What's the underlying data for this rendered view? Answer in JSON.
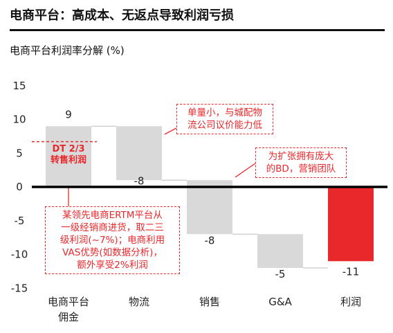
{
  "title": "电商平台：高成本、无返点导致利润亏损",
  "chart_data": {
    "type": "waterfall",
    "ylabel": "电商平台利润率分解 (%)",
    "ylim": [
      -15,
      15
    ],
    "yticks": [
      "15",
      "10",
      "5",
      "0",
      "-5",
      "-10",
      "-15"
    ],
    "categories": [
      "电商平台佣金",
      "物流",
      "销售",
      "G&A",
      "利润"
    ],
    "category_lines": [
      [
        "电商平台",
        "佣金"
      ],
      [
        "物流"
      ],
      [
        "销售"
      ],
      [
        "G&A"
      ],
      [
        "利润"
      ]
    ],
    "values": [
      9,
      -8,
      -8,
      -5,
      -11
    ],
    "labels": [
      "9",
      "-8",
      "-8",
      "-5",
      "-11"
    ],
    "bar_colors": [
      "#d9d9d9",
      "#d9d9d9",
      "#d9d9d9",
      "#d9d9d9",
      "#e8282b"
    ],
    "reference_line": {
      "value": 6.7,
      "label_lines": [
        "DT 2/3",
        "转售利润"
      ],
      "color": "#e8282b"
    },
    "grid": false
  },
  "callouts": {
    "logistics": [
      "单量小，与城配物",
      "流公司议价能力低"
    ],
    "sales": [
      "为扩张拥有庞大",
      "的BD，营销团队"
    ],
    "commission": [
      "某领先电商ERTM平台从",
      "一级经销商进货，取二三",
      "级利润(~7%)；电商利用",
      "VAS优势(如数据分析)，",
      "额外享受2%利润"
    ]
  },
  "colors": {
    "accent": "#e8282b",
    "bar": "#d9d9d9",
    "text": "#222222",
    "axis": "#000000"
  }
}
